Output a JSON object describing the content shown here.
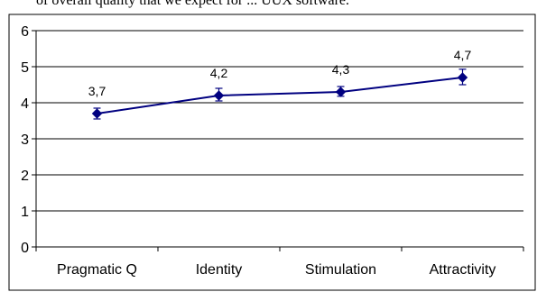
{
  "header_text": "of overall quality that we expect for ... UUX software.",
  "chart_data": {
    "type": "line",
    "title": "",
    "xlabel": "",
    "ylabel": "",
    "categories": [
      "Pragmatic Q",
      "Identity",
      "Stimulation",
      "Attractivity"
    ],
    "series": [
      {
        "values": [
          3.7,
          4.2,
          4.3,
          4.7
        ],
        "error_low": [
          3.55,
          4.05,
          4.18,
          4.5
        ],
        "error_high": [
          3.85,
          4.4,
          4.45,
          4.93
        ],
        "data_labels": [
          "3,7",
          "4,2",
          "4,3",
          "4,7"
        ],
        "color": "#000080"
      }
    ],
    "ylim": [
      0,
      6
    ],
    "yticks": [
      "0",
      "1",
      "2",
      "3",
      "4",
      "5",
      "6"
    ],
    "grid": true,
    "legend": "none"
  }
}
